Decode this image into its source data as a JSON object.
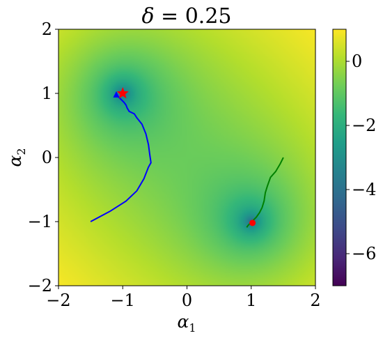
{
  "chart_data": {
    "type": "heatmap",
    "title": "δ = 0.25",
    "title_parts": {
      "symbol": "δ",
      "rest": " = 0.25"
    },
    "xlabel": {
      "symbol": "α",
      "subscript": "1"
    },
    "ylabel": {
      "symbol": "α",
      "subscript": "2"
    },
    "xlim": [
      -2,
      2
    ],
    "ylim": [
      -2,
      2
    ],
    "x_ticks": [
      -2,
      -1,
      0,
      1,
      2
    ],
    "y_ticks": [
      -2,
      -1,
      0,
      1,
      2
    ],
    "x_tick_labels": [
      "−2",
      "−1",
      "0",
      "1",
      "2"
    ],
    "y_tick_labels": [
      "−2",
      "−1",
      "0",
      "1",
      "2"
    ],
    "colorbar": {
      "colormap": "viridis",
      "range": [
        -7,
        1
      ],
      "ticks": [
        0,
        -2,
        -4,
        -6
      ],
      "tick_labels": [
        "0",
        "−2",
        "−4",
        "−6"
      ]
    },
    "minima": [
      {
        "x": -1,
        "y": 1
      },
      {
        "x": 1,
        "y": -1
      }
    ],
    "series": [
      {
        "color": "#0000ff",
        "points": [
          [
            -1.5,
            -1.0
          ],
          [
            -1.2,
            -0.84
          ],
          [
            -0.95,
            -0.68
          ],
          [
            -0.78,
            -0.52
          ],
          [
            -0.67,
            -0.33
          ],
          [
            -0.6,
            -0.15
          ],
          [
            -0.56,
            -0.08
          ],
          [
            -0.58,
            0.05
          ],
          [
            -0.6,
            0.2
          ],
          [
            -0.64,
            0.37
          ],
          [
            -0.7,
            0.52
          ],
          [
            -0.78,
            0.62
          ],
          [
            -0.82,
            0.68
          ],
          [
            -0.9,
            0.72
          ],
          [
            -0.93,
            0.77
          ],
          [
            -0.95,
            0.82
          ],
          [
            -0.98,
            0.86
          ],
          [
            -1.02,
            0.9
          ],
          [
            -1.05,
            0.93
          ],
          [
            -1.07,
            0.95
          ],
          [
            -1.1,
            0.98
          ]
        ],
        "end_marker": {
          "shape": "triangle",
          "x": -1.1,
          "y": 0.98
        }
      },
      {
        "color": "#008000",
        "points": [
          [
            1.5,
            0.0
          ],
          [
            1.45,
            -0.1
          ],
          [
            1.38,
            -0.22
          ],
          [
            1.3,
            -0.31
          ],
          [
            1.25,
            -0.45
          ],
          [
            1.22,
            -0.55
          ],
          [
            1.2,
            -0.68
          ],
          [
            1.17,
            -0.78
          ],
          [
            1.13,
            -0.86
          ],
          [
            1.08,
            -0.93
          ],
          [
            1.03,
            -0.98
          ],
          [
            0.98,
            -1.03
          ],
          [
            0.95,
            -1.06
          ],
          [
            0.93,
            -1.09
          ]
        ],
        "end_marker": {
          "shape": "circle",
          "x": 1.02,
          "y": -1.02
        }
      }
    ],
    "markers": [
      {
        "shape": "star",
        "color": "#ff0000",
        "x": -1.0,
        "y": 1.0
      },
      {
        "shape": "circle",
        "color": "#ff0000",
        "x": 1.02,
        "y": -1.02
      }
    ]
  }
}
